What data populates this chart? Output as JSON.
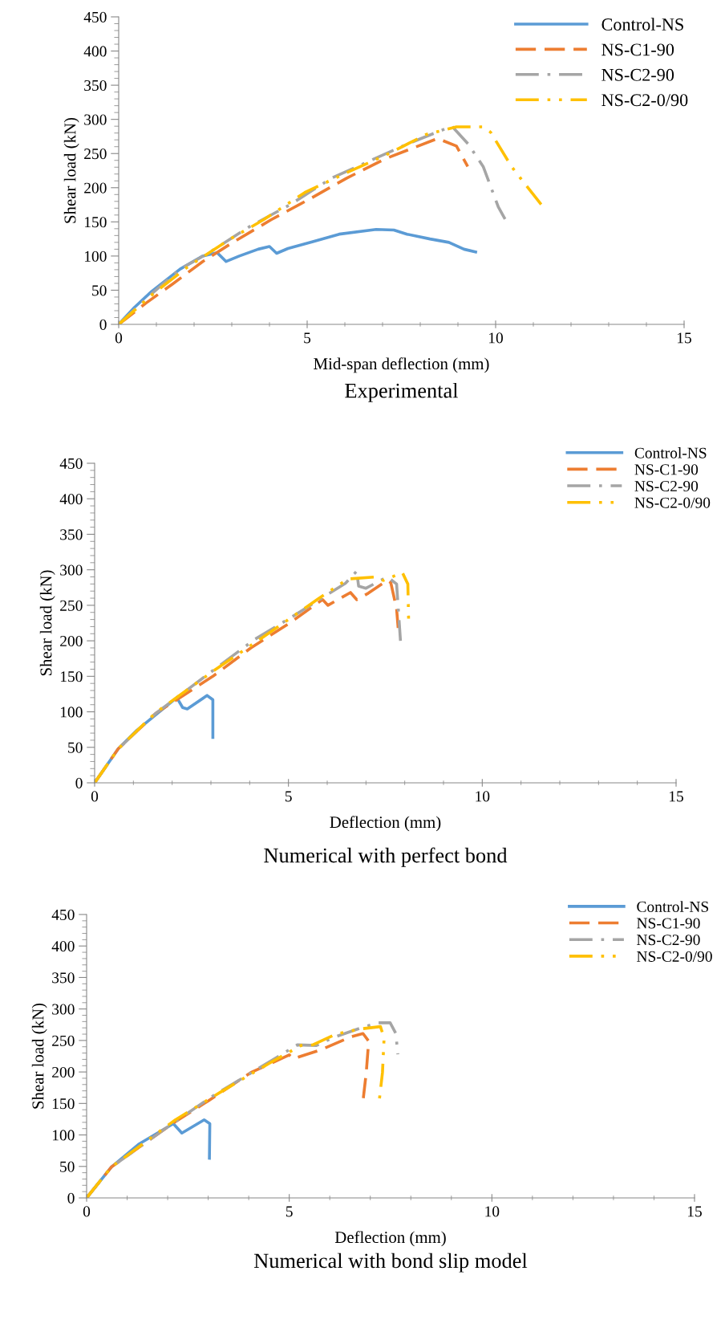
{
  "chart_data": [
    {
      "type": "line",
      "title": "Experimental",
      "xlabel": "Mid-span deflection (mm)",
      "ylabel": "Shear load (kN)",
      "xlim": [
        0,
        15
      ],
      "xticks": [
        0,
        5,
        10,
        15
      ],
      "ylim": [
        0,
        450
      ],
      "yticks": [
        0,
        50,
        100,
        150,
        200,
        250,
        300,
        350,
        400,
        450
      ],
      "grid": false,
      "legend": "top right",
      "marker": "none",
      "series": [
        {
          "name": "Control-NS",
          "color": "#5b9bd5",
          "line_style": "solid",
          "x": [
            0,
            0.42,
            0.87,
            1.63,
            2.23,
            2.61,
            2.85,
            3.2,
            3.7,
            4.0,
            4.19,
            4.49,
            5.15,
            5.85,
            6.83,
            7.3,
            7.65,
            8.26,
            8.76,
            9.16,
            9.47
          ],
          "values": [
            0,
            25,
            48,
            81,
            100,
            105,
            92,
            100,
            110,
            114,
            104,
            111,
            121,
            132,
            139,
            138,
            132,
            125,
            120,
            110,
            106
          ]
        },
        {
          "name": "NS-C1-90",
          "color": "#ed7d31",
          "line_style": "dashed",
          "x": [
            0,
            0.72,
            1.43,
            2.23,
            3.03,
            4.04,
            5.05,
            6.05,
            7.06,
            8.46,
            8.96,
            9.26
          ],
          "values": [
            0,
            31,
            59,
            92,
            120,
            153,
            183,
            214,
            242,
            272,
            261,
            231
          ]
        },
        {
          "name": "NS-C2-90",
          "color": "#a5a5a5",
          "line_style": "dashdot",
          "x": [
            0,
            0.82,
            1.63,
            2.43,
            3.44,
            4.54,
            5.65,
            6.65,
            7.66,
            8.84,
            9.27,
            9.67,
            10.07,
            10.25
          ],
          "values": [
            0,
            42,
            81,
            106,
            142,
            175,
            214,
            239,
            264,
            290,
            264,
            231,
            172,
            154
          ]
        },
        {
          "name": "NS-C2-0/90",
          "color": "#ffc000",
          "line_style": "dashdotdot",
          "x": [
            0,
            0.92,
            1.83,
            2.93,
            3.84,
            4.94,
            6.05,
            7.06,
            8.16,
            8.96,
            9.67,
            9.87,
            10.42,
            10.77,
            11.23
          ],
          "values": [
            0,
            45,
            84,
            124,
            153,
            193,
            222,
            247,
            278,
            289,
            289,
            281,
            231,
            206,
            174
          ]
        }
      ]
    },
    {
      "type": "line",
      "title": "Numerical with perfect bond",
      "xlabel": "Deflection (mm)",
      "ylabel": "Shear load (kN)",
      "xlim": [
        0,
        15
      ],
      "xticks": [
        0,
        5,
        10,
        15
      ],
      "ylim": [
        0,
        450
      ],
      "yticks": [
        0,
        50,
        100,
        150,
        200,
        250,
        300,
        350,
        400,
        450
      ],
      "grid": false,
      "legend": "top right",
      "marker": "none",
      "series": [
        {
          "name": "Control-NS",
          "color": "#5b9bd5",
          "line_style": "solid",
          "x": [
            0,
            0.61,
            1.09,
            1.58,
            2.12,
            2.27,
            2.39,
            2.9,
            3.05,
            3.05
          ],
          "values": [
            0,
            48,
            74,
            96,
            120,
            106,
            104,
            123,
            117,
            64
          ]
        },
        {
          "name": "NS-C1-90",
          "color": "#ed7d31",
          "line_style": "dashed",
          "x": [
            0,
            0.61,
            1.58,
            3.05,
            4.03,
            5.0,
            5.88,
            6.02,
            6.6,
            6.76,
            7.06,
            7.55,
            7.64,
            7.79,
            7.83
          ],
          "values": [
            0,
            48,
            98,
            150,
            190,
            224,
            258,
            250,
            268,
            258,
            267,
            285,
            282,
            245,
            218
          ]
        },
        {
          "name": "NS-C2-90",
          "color": "#a5a5a5",
          "line_style": "dashdot",
          "x": [
            0,
            0.61,
            1.58,
            3.05,
            4.13,
            5.1,
            6.47,
            6.76,
            6.81,
            7.0,
            7.55,
            7.79,
            7.89
          ],
          "values": [
            0,
            48,
            98,
            158,
            202,
            234,
            281,
            298,
            277,
            274,
            290,
            280,
            200
          ]
        },
        {
          "name": "NS-C2-0/90",
          "color": "#ffc000",
          "line_style": "dashdotdot",
          "x": [
            0,
            0.61,
            1.58,
            3.05,
            4.42,
            5.74,
            6.53,
            7.25,
            7.45,
            7.94,
            8.08,
            8.1
          ],
          "values": [
            0,
            48,
            99,
            157,
            208,
            258,
            287,
            290,
            285,
            296,
            280,
            229
          ]
        }
      ]
    },
    {
      "type": "line",
      "title": "Numerical with bond slip model",
      "xlabel": "Deflection (mm)",
      "ylabel": "Shear load (kN)",
      "xlim": [
        0,
        15
      ],
      "xticks": [
        0,
        5,
        10,
        15
      ],
      "ylim": [
        0,
        450
      ],
      "yticks": [
        0,
        50,
        100,
        150,
        200,
        250,
        300,
        350,
        400,
        450
      ],
      "grid": false,
      "legend": "top right",
      "marker": "none",
      "series": [
        {
          "name": "Control-NS",
          "color": "#5b9bd5",
          "line_style": "solid",
          "x": [
            0,
            0.61,
            1.28,
            2.14,
            2.35,
            2.9,
            3.04,
            3.03
          ],
          "values": [
            0,
            49,
            85,
            118,
            103,
            124,
            118,
            63
          ]
        },
        {
          "name": "NS-C1-90",
          "color": "#ed7d31",
          "line_style": "dashed",
          "x": [
            0,
            0.61,
            2.14,
            3.0,
            4.05,
            5.0,
            5.1,
            5.77,
            6.53,
            6.82,
            6.96,
            6.9,
            6.82
          ],
          "values": [
            0,
            49,
            119,
            154,
            199,
            227,
            221,
            235,
            256,
            261,
            249,
            199,
            154
          ]
        },
        {
          "name": "NS-C2-90",
          "color": "#a5a5a5",
          "line_style": "dashdot",
          "x": [
            0,
            0.61,
            2.14,
            3.14,
            4.15,
            5.2,
            5.67,
            6.06,
            6.82,
            7.2,
            7.49,
            7.63,
            7.68
          ],
          "values": [
            0,
            49,
            119,
            163,
            202,
            243,
            242,
            254,
            271,
            278,
            278,
            261,
            228
          ]
        },
        {
          "name": "NS-C2-0/90",
          "color": "#ffc000",
          "line_style": "dashdotdot",
          "x": [
            0,
            0.61,
            2.19,
            3.38,
            4.62,
            5.29,
            5.58,
            6.15,
            6.72,
            7.25,
            7.34,
            7.3,
            7.22
          ],
          "values": [
            0,
            49,
            124,
            171,
            218,
            242,
            243,
            260,
            268,
            272,
            254,
            199,
            154
          ]
        }
      ]
    }
  ]
}
